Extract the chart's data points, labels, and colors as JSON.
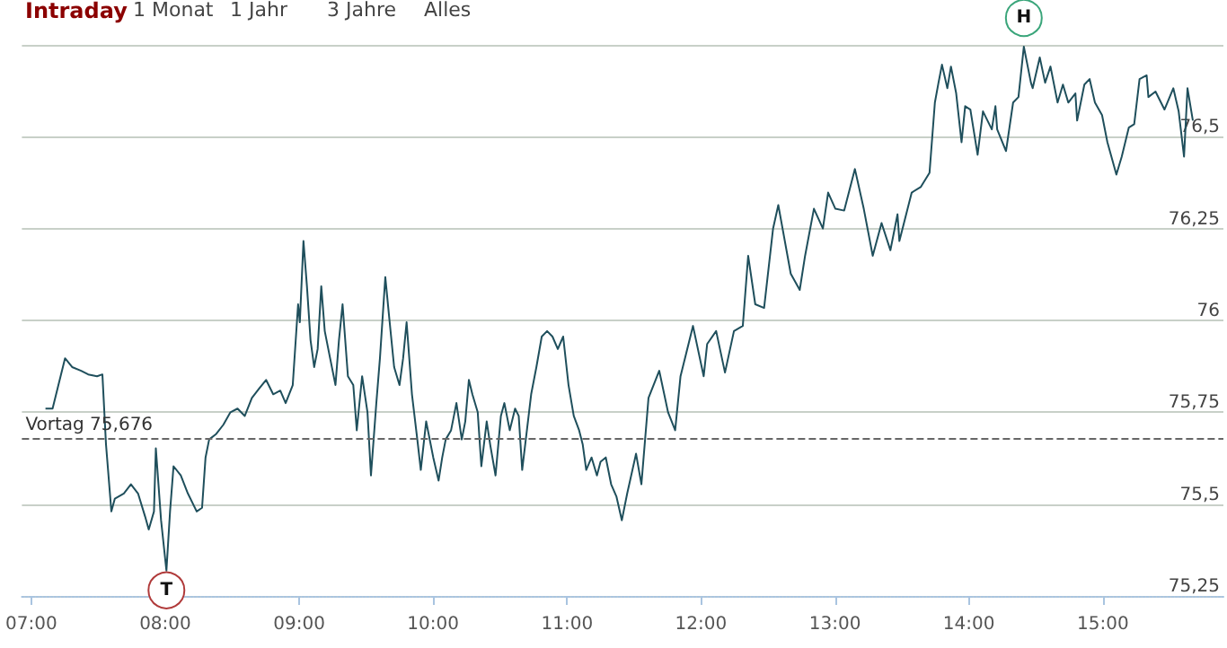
{
  "chart_data": {
    "type": "line",
    "title": "Intraday",
    "annotations": [
      "1 Monat",
      "1 Jahr",
      "3 Jahre",
      "Alles",
      {
        "text": "H",
        "x": 14.41,
        "y": 76.745
      },
      {
        "text": "T",
        "x": 8.009,
        "y": 75.319
      }
    ],
    "x": [
      7.106,
      7.159,
      7.252,
      7.305,
      7.372,
      7.425,
      7.491,
      7.531,
      7.558,
      7.598,
      7.624,
      7.691,
      7.744,
      7.797,
      7.85,
      7.877,
      7.916,
      7.93,
      7.969,
      8.009,
      8.036,
      8.062,
      8.116,
      8.169,
      8.235,
      8.275,
      8.301,
      8.328,
      8.381,
      8.434,
      8.487,
      8.54,
      8.594,
      8.647,
      8.7,
      8.753,
      8.806,
      8.859,
      8.899,
      8.952,
      8.992,
      9.005,
      9.032,
      9.058,
      9.085,
      9.112,
      9.138,
      9.165,
      9.191,
      9.231,
      9.271,
      9.297,
      9.324,
      9.364,
      9.404,
      9.43,
      9.47,
      9.51,
      9.536,
      9.576,
      9.603,
      9.643,
      9.669,
      9.709,
      9.749,
      9.776,
      9.802,
      9.842,
      9.882,
      9.908,
      9.948,
      10.001,
      10.041,
      10.068,
      10.094,
      10.134,
      10.174,
      10.214,
      10.24,
      10.267,
      10.293,
      10.333,
      10.36,
      10.4,
      10.426,
      10.466,
      10.506,
      10.532,
      10.572,
      10.612,
      10.639,
      10.665,
      10.692,
      10.732,
      10.771,
      10.811,
      10.851,
      10.891,
      10.931,
      10.971,
      11.011,
      11.05,
      11.09,
      11.117,
      11.143,
      11.183,
      11.223,
      11.25,
      11.289,
      11.329,
      11.369,
      11.409,
      11.449,
      11.515,
      11.555,
      11.608,
      11.688,
      11.754,
      11.807,
      11.847,
      11.94,
      12.02,
      12.046,
      12.113,
      12.179,
      12.246,
      12.312,
      12.352,
      12.405,
      12.471,
      12.538,
      12.577,
      12.67,
      12.737,
      12.777,
      12.843,
      12.91,
      12.949,
      13.003,
      13.069,
      13.149,
      13.215,
      13.282,
      13.348,
      13.414,
      13.467,
      13.481,
      13.573,
      13.64,
      13.706,
      13.746,
      13.773,
      13.799,
      13.839,
      13.866,
      13.905,
      13.945,
      13.972,
      14.011,
      14.065,
      14.105,
      14.171,
      14.198,
      14.211,
      14.277,
      14.33,
      14.37,
      14.41,
      14.463,
      14.476,
      14.529,
      14.569,
      14.609,
      14.662,
      14.702,
      14.742,
      14.795,
      14.808,
      14.862,
      14.901,
      14.941,
      14.994,
      15.034,
      15.101,
      15.141,
      15.194,
      15.234,
      15.274,
      15.327,
      15.34,
      15.393,
      15.46,
      15.526,
      15.566,
      15.606,
      15.632,
      15.672
    ],
    "series": [
      {
        "color": "#1f4f5c",
        "values": [
          75.76,
          75.76,
          75.897,
          75.873,
          75.863,
          75.853,
          75.848,
          75.853,
          75.662,
          75.48,
          75.515,
          75.529,
          75.554,
          75.529,
          75.466,
          75.431,
          75.48,
          75.652,
          75.456,
          75.319,
          75.48,
          75.603,
          75.578,
          75.529,
          75.48,
          75.49,
          75.627,
          75.676,
          75.691,
          75.716,
          75.75,
          75.76,
          75.74,
          75.789,
          75.814,
          75.838,
          75.799,
          75.809,
          75.775,
          75.824,
          76.044,
          75.995,
          76.216,
          76.093,
          75.946,
          75.873,
          75.922,
          76.093,
          75.971,
          75.897,
          75.824,
          75.946,
          76.044,
          75.848,
          75.824,
          75.701,
          75.848,
          75.75,
          75.578,
          75.775,
          75.897,
          76.118,
          76.02,
          75.873,
          75.824,
          75.897,
          75.995,
          75.799,
          75.676,
          75.593,
          75.725,
          75.627,
          75.564,
          75.627,
          75.676,
          75.701,
          75.775,
          75.676,
          75.725,
          75.838,
          75.799,
          75.75,
          75.603,
          75.725,
          75.662,
          75.578,
          75.74,
          75.775,
          75.701,
          75.76,
          75.74,
          75.593,
          75.676,
          75.799,
          75.873,
          75.956,
          75.971,
          75.956,
          75.922,
          75.956,
          75.824,
          75.74,
          75.701,
          75.662,
          75.593,
          75.627,
          75.578,
          75.615,
          75.627,
          75.554,
          75.52,
          75.456,
          75.529,
          75.637,
          75.554,
          75.789,
          75.863,
          75.75,
          75.701,
          75.848,
          75.985,
          75.848,
          75.936,
          75.971,
          75.858,
          75.971,
          75.985,
          76.176,
          76.044,
          76.034,
          76.25,
          76.314,
          76.127,
          76.083,
          76.176,
          76.304,
          76.25,
          76.348,
          76.304,
          76.299,
          76.412,
          76.304,
          76.176,
          76.265,
          76.191,
          76.289,
          76.216,
          76.348,
          76.363,
          76.402,
          76.593,
          76.647,
          76.696,
          76.632,
          76.691,
          76.618,
          76.485,
          76.583,
          76.574,
          76.451,
          76.569,
          76.52,
          76.583,
          76.52,
          76.461,
          76.593,
          76.608,
          76.745,
          76.647,
          76.632,
          76.716,
          76.647,
          76.691,
          76.593,
          76.642,
          76.593,
          76.618,
          76.544,
          76.642,
          76.657,
          76.593,
          76.559,
          76.485,
          76.397,
          76.446,
          76.525,
          76.534,
          76.657,
          76.667,
          76.608,
          76.623,
          76.574,
          76.632,
          76.569,
          76.446,
          76.632,
          76.544
        ]
      }
    ],
    "xlim": [
      6.93,
      15.9
    ],
    "xticks": [
      {
        "value": 7,
        "label": "07:00"
      },
      {
        "value": 8,
        "label": "08:00"
      },
      {
        "value": 9,
        "label": "09:00"
      },
      {
        "value": 10,
        "label": "10:00"
      },
      {
        "value": 11,
        "label": "11:00"
      },
      {
        "value": 12,
        "label": "12:00"
      },
      {
        "value": 13,
        "label": "13:00"
      },
      {
        "value": 14,
        "label": "14:00"
      },
      {
        "value": 15,
        "label": "15:00"
      }
    ],
    "ylim": [
      75.25,
      76.75
    ],
    "yticks": [
      {
        "value": 75.25,
        "label": "75,25"
      },
      {
        "value": 75.5,
        "label": "75,5"
      },
      {
        "value": 75.75,
        "label": "75,75"
      },
      {
        "value": 76,
        "label": "76"
      },
      {
        "value": 76.25,
        "label": "76,25"
      },
      {
        "value": 76.5,
        "label": "76,5"
      },
      {
        "value": 76.75,
        "label": null
      }
    ],
    "ref_lines": [
      {
        "axis": "y",
        "value": 75.676,
        "label": "Vortag 75,676",
        "color": "#666666",
        "line_style": "dashed"
      }
    ],
    "grid": "y",
    "marker": "none",
    "line_style": "solid"
  }
}
